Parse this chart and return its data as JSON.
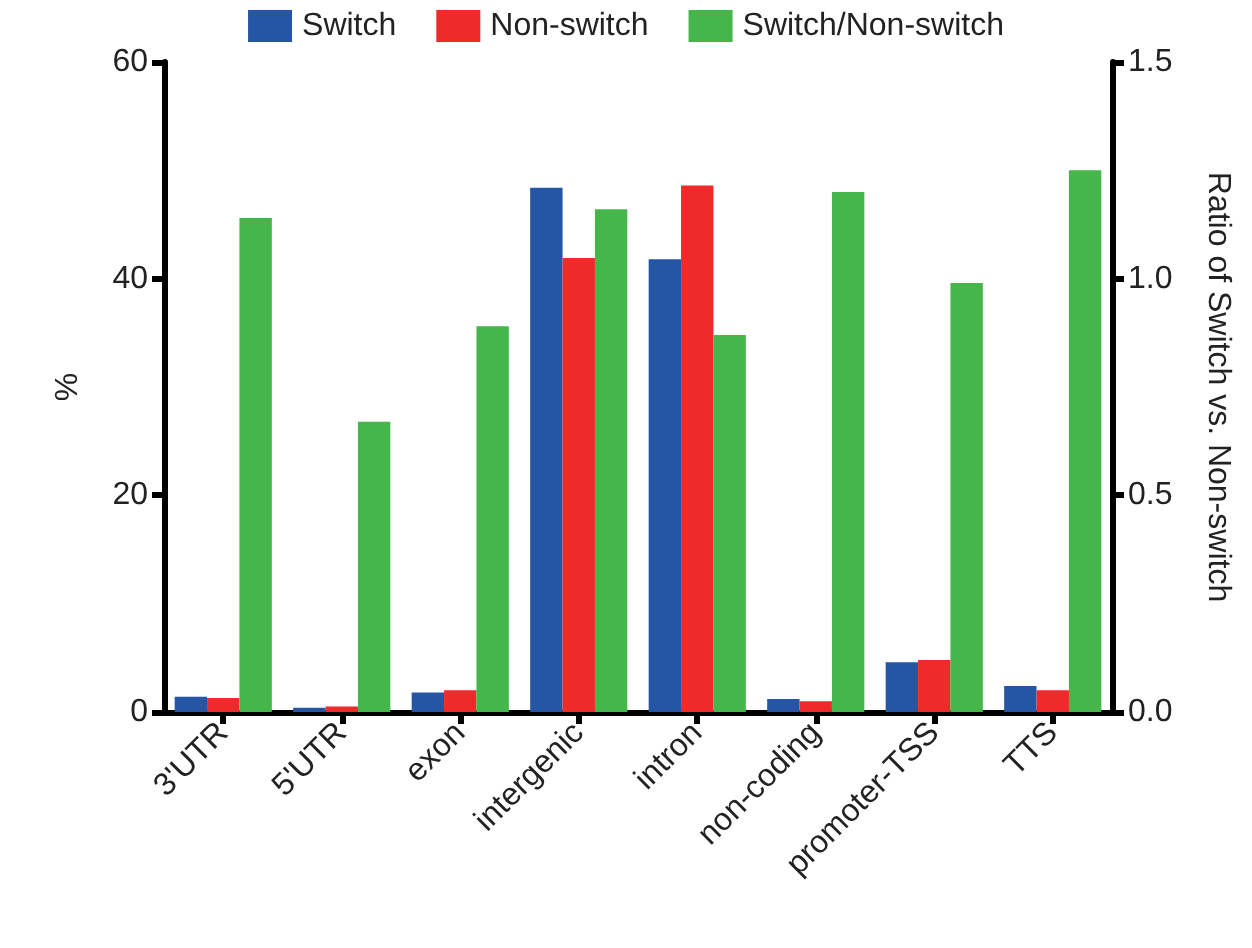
{
  "chart_data": {
    "type": "bar",
    "ylabel": "%",
    "y2label": "Ratio of Switch vs. Non-switch",
    "categories": [
      "3'UTR",
      "5'UTR",
      "exon",
      "intergenic",
      "intron",
      "non-coding",
      "promoter-TSS",
      "TTS"
    ],
    "series": [
      {
        "name": "Switch",
        "color": "#2556a6",
        "values": [
          1.4,
          0.4,
          1.8,
          48.4,
          41.8,
          1.2,
          4.6,
          2.4
        ]
      },
      {
        "name": "Non-switch",
        "color": "#ee2a2a",
        "values": [
          1.3,
          0.5,
          2.0,
          41.9,
          48.6,
          1.0,
          4.8,
          2.0
        ]
      },
      {
        "name": "Switch/Non-switch",
        "color": "#44b64a",
        "axis": "y2",
        "values": [
          1.14,
          0.67,
          0.89,
          1.16,
          0.87,
          1.2,
          0.99,
          1.25
        ]
      }
    ],
    "ylim": [
      0,
      60
    ],
    "yticks": [
      0,
      20,
      40,
      60
    ],
    "y2lim": [
      0,
      1.5
    ],
    "y2ticks": [
      {
        "value": 0,
        "label": "0.0"
      },
      {
        "value": 0.5,
        "label": "0.5"
      },
      {
        "value": 1,
        "label": "1.0"
      },
      {
        "value": 1.5,
        "label": "1.5"
      }
    ],
    "grid": false,
    "legend": "top"
  }
}
